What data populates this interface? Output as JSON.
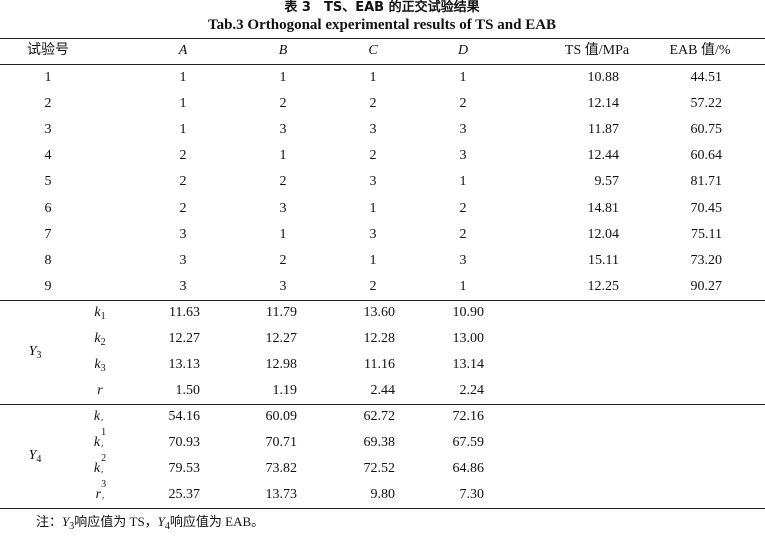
{
  "title_cn": "表 3　TS、EAB 的正交试验结果",
  "title_en": "Tab.3 Orthogonal experimental results of TS and EAB",
  "headers": [
    "试验号",
    "A",
    "B",
    "C",
    "D",
    "TS 值/MPa",
    "EAB 值/%"
  ],
  "rows": [
    [
      "1",
      "1",
      "1",
      "1",
      "1",
      "10.88",
      "44.51"
    ],
    [
      "2",
      "1",
      "2",
      "2",
      "2",
      "12.14",
      "57.22"
    ],
    [
      "3",
      "1",
      "3",
      "3",
      "3",
      "11.87",
      "60.75"
    ],
    [
      "4",
      "2",
      "1",
      "2",
      "3",
      "12.44",
      "60.64"
    ],
    [
      "5",
      "2",
      "2",
      "3",
      "1",
      "9.57",
      "81.71"
    ],
    [
      "6",
      "2",
      "3",
      "1",
      "2",
      "14.81",
      "70.45"
    ],
    [
      "7",
      "3",
      "1",
      "3",
      "2",
      "12.04",
      "75.11"
    ],
    [
      "8",
      "3",
      "2",
      "1",
      "3",
      "15.11",
      "73.20"
    ],
    [
      "9",
      "3",
      "3",
      "2",
      "1",
      "12.25",
      "90.27"
    ]
  ],
  "groups": [
    {
      "name": "Y",
      "sub": "3",
      "stats": [
        {
          "base": "k",
          "sub": "1",
          "prime": "",
          "values": [
            "11.63",
            "11.79",
            "13.60",
            "10.90"
          ]
        },
        {
          "base": "k",
          "sub": "2",
          "prime": "",
          "values": [
            "12.27",
            "12.27",
            "12.28",
            "13.00"
          ]
        },
        {
          "base": "k",
          "sub": "3",
          "prime": "",
          "values": [
            "13.13",
            "12.98",
            "11.16",
            "13.14"
          ]
        },
        {
          "base": "r",
          "sub": "",
          "prime": "",
          "values": [
            "1.50",
            "1.19",
            "2.44",
            "2.24"
          ]
        }
      ]
    },
    {
      "name": "Y",
      "sub": "4",
      "stats": [
        {
          "base": "k",
          "sub": "1",
          "prime": "′",
          "values": [
            "54.16",
            "60.09",
            "62.72",
            "72.16"
          ]
        },
        {
          "base": "k",
          "sub": "2",
          "prime": "′",
          "values": [
            "70.93",
            "70.71",
            "69.38",
            "67.59"
          ]
        },
        {
          "base": "k",
          "sub": "3",
          "prime": "′",
          "values": [
            "79.53",
            "73.82",
            "72.52",
            "64.86"
          ]
        },
        {
          "base": "r",
          "sub": "",
          "prime": "′",
          "values": [
            "25.37",
            "13.73",
            "9.80",
            "7.30"
          ]
        }
      ]
    }
  ],
  "note": {
    "prefix": "注：",
    "y3": "Y",
    "y3sub": "3",
    "t1": "响应值为 TS，",
    "y4": "Y",
    "y4sub": "4",
    "t2": "响应值为 EAB。"
  }
}
